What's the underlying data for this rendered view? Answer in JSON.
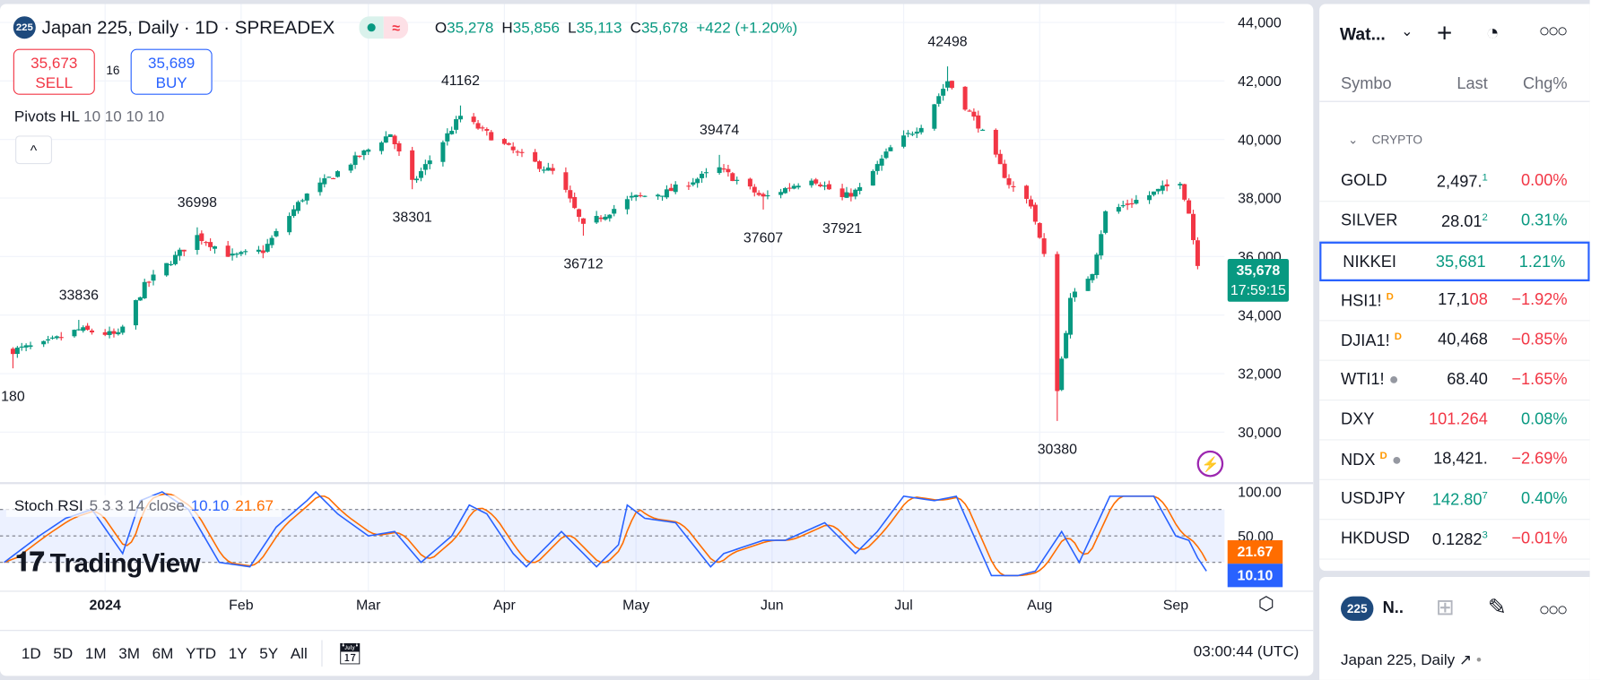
{
  "header": {
    "badge": "225",
    "title": "Japan 225, Daily · 1D · SPREADEX",
    "status_dot_color": "#089981",
    "delay_icon": "≈",
    "ohlc": [
      {
        "k": "O",
        "v": "35,278"
      },
      {
        "k": "H",
        "v": "35,856"
      },
      {
        "k": "L",
        "v": "35,113"
      },
      {
        "k": "C",
        "v": "35,678"
      }
    ],
    "change": "+422 (+1.20%)"
  },
  "trade": {
    "sell_price": "35,673",
    "sell_label": "SELL",
    "spread": "16",
    "buy_price": "35,689",
    "buy_label": "BUY"
  },
  "indicator": {
    "name": "Pivots HL",
    "params": "10 10 10 10",
    "collapse": "^"
  },
  "stoch": {
    "name": "Stoch RSI",
    "params": "5 3 3 14 close",
    "k": "10.10",
    "d": "21.67",
    "k_color": "#2962ff",
    "d_color": "#ff6d00"
  },
  "logo": "TradingView",
  "price_tag": {
    "price": "35,678",
    "countdown": "17:59:15",
    "color": "#089981"
  },
  "bottom": {
    "ranges": [
      "1D",
      "5D",
      "1M",
      "3M",
      "6M",
      "YTD",
      "1Y",
      "5Y",
      "All"
    ],
    "clock": "03:00:44 (UTC)"
  },
  "chart_data": [
    {
      "type": "candlestick",
      "up_color": "#089981",
      "down_color": "#f23645",
      "ylim": [
        29500,
        44500
      ],
      "y_ticks": [
        "44,000",
        "42,000",
        "40,000",
        "38,000",
        "36,000",
        "34,000",
        "32,000",
        "30,000"
      ],
      "y_tick_values": [
        44000,
        42000,
        40000,
        38000,
        36000,
        34000,
        32000,
        30000
      ],
      "x_ticks": [
        {
          "label": "2024",
          "date": "2024-01-01"
        },
        {
          "label": "Feb",
          "date": "2024-02-01"
        },
        {
          "label": "Mar",
          "date": "2024-03-01"
        },
        {
          "label": "Apr",
          "date": "2024-04-01"
        },
        {
          "label": "May",
          "date": "2024-05-01"
        },
        {
          "label": "Jun",
          "date": "2024-06-01"
        },
        {
          "label": "Jul",
          "date": "2024-07-01"
        },
        {
          "label": "Aug",
          "date": "2024-08-01"
        },
        {
          "label": "Sep",
          "date": "2024-09-01"
        }
      ],
      "approx_close": [
        [
          "2023-12-11",
          32800
        ],
        [
          "2023-12-18",
          33000
        ],
        [
          "2023-12-26",
          33500
        ],
        [
          "2024-01-04",
          33300
        ],
        [
          "2024-01-10",
          35000
        ],
        [
          "2024-01-22",
          36700
        ],
        [
          "2024-01-30",
          36000
        ],
        [
          "2024-02-06",
          36200
        ],
        [
          "2024-02-15",
          38000
        ],
        [
          "2024-02-24",
          39000
        ],
        [
          "2024-03-06",
          40200
        ],
        [
          "2024-03-11",
          38500
        ],
        [
          "2024-03-15",
          39300
        ],
        [
          "2024-03-22",
          40800
        ],
        [
          "2024-04-04",
          39500
        ],
        [
          "2024-04-13",
          38800
        ],
        [
          "2024-04-19",
          37000
        ],
        [
          "2024-04-30",
          38000
        ],
        [
          "2024-05-08",
          38200
        ],
        [
          "2024-05-20",
          39000
        ],
        [
          "2024-05-30",
          38000
        ],
        [
          "2024-06-10",
          38700
        ],
        [
          "2024-06-17",
          38000
        ],
        [
          "2024-06-21",
          38300
        ],
        [
          "2024-06-28",
          39700
        ],
        [
          "2024-07-05",
          40500
        ],
        [
          "2024-07-11",
          42000
        ],
        [
          "2024-07-18",
          40500
        ],
        [
          "2024-07-25",
          38500
        ],
        [
          "2024-07-30",
          37800
        ],
        [
          "2024-08-02",
          36000
        ],
        [
          "2024-08-05",
          31500
        ],
        [
          "2024-08-08",
          34500
        ],
        [
          "2024-08-13",
          35500
        ],
        [
          "2024-08-16",
          37500
        ],
        [
          "2024-08-26",
          38100
        ],
        [
          "2024-09-02",
          38600
        ],
        [
          "2024-09-04",
          37500
        ],
        [
          "2024-09-06",
          35678
        ]
      ],
      "pivots": [
        {
          "label": "180",
          "date": "2023-12-11",
          "price": 32180,
          "type": "low"
        },
        {
          "label": "33836",
          "date": "2023-12-26",
          "price": 33836,
          "type": "high"
        },
        {
          "label": "36998",
          "date": "2024-01-22",
          "price": 36998,
          "type": "high"
        },
        {
          "label": "38301",
          "date": "2024-03-11",
          "price": 38301,
          "type": "low"
        },
        {
          "label": "41162",
          "date": "2024-03-22",
          "price": 41162,
          "type": "high"
        },
        {
          "label": "36712",
          "date": "2024-04-19",
          "price": 36712,
          "type": "low"
        },
        {
          "label": "39474",
          "date": "2024-05-20",
          "price": 39474,
          "type": "high"
        },
        {
          "label": "37607",
          "date": "2024-05-30",
          "price": 37607,
          "type": "low"
        },
        {
          "label": "37921",
          "date": "2024-06-17",
          "price": 37921,
          "type": "low"
        },
        {
          "label": "42498",
          "date": "2024-07-11",
          "price": 42498,
          "type": "high"
        },
        {
          "label": "30380",
          "date": "2024-08-05",
          "price": 30380,
          "type": "low"
        }
      ]
    },
    {
      "type": "line",
      "title": "Stoch RSI 5 3 3 14 close",
      "ylim": [
        0,
        100
      ],
      "y_ticks": [
        "100.00",
        "50.00"
      ],
      "bands": [
        20,
        50,
        80
      ],
      "k_approx": [
        [
          "2023-12-09",
          20
        ],
        [
          "2023-12-17",
          50
        ],
        [
          "2023-12-23",
          70
        ],
        [
          "2023-12-29",
          80
        ],
        [
          "2024-01-05",
          30
        ],
        [
          "2024-01-09",
          90
        ],
        [
          "2024-01-14",
          100
        ],
        [
          "2024-01-20",
          80
        ],
        [
          "2024-01-27",
          20
        ],
        [
          "2024-02-03",
          15
        ],
        [
          "2024-02-09",
          60
        ],
        [
          "2024-02-16",
          90
        ],
        [
          "2024-02-18",
          100
        ],
        [
          "2024-02-23",
          75
        ],
        [
          "2024-03-01",
          50
        ],
        [
          "2024-03-07",
          55
        ],
        [
          "2024-03-13",
          20
        ],
        [
          "2024-03-20",
          50
        ],
        [
          "2024-03-24",
          85
        ],
        [
          "2024-03-28",
          75
        ],
        [
          "2024-04-03",
          30
        ],
        [
          "2024-04-06",
          15
        ],
        [
          "2024-04-14",
          55
        ],
        [
          "2024-04-20",
          25
        ],
        [
          "2024-04-22",
          15
        ],
        [
          "2024-04-27",
          40
        ],
        [
          "2024-04-29",
          85
        ],
        [
          "2024-05-03",
          70
        ],
        [
          "2024-05-10",
          65
        ],
        [
          "2024-05-18",
          15
        ],
        [
          "2024-05-21",
          30
        ],
        [
          "2024-05-30",
          45
        ],
        [
          "2024-06-04",
          45
        ],
        [
          "2024-06-13",
          65
        ],
        [
          "2024-06-20",
          30
        ],
        [
          "2024-06-25",
          55
        ],
        [
          "2024-07-01",
          95
        ],
        [
          "2024-07-08",
          90
        ],
        [
          "2024-07-13",
          95
        ],
        [
          "2024-07-21",
          5
        ],
        [
          "2024-07-27",
          5
        ],
        [
          "2024-07-31",
          10
        ],
        [
          "2024-08-06",
          55
        ],
        [
          "2024-08-10",
          20
        ],
        [
          "2024-08-17",
          95
        ],
        [
          "2024-08-23",
          95
        ],
        [
          "2024-08-27",
          95
        ],
        [
          "2024-09-01",
          50
        ],
        [
          "2024-09-04",
          45
        ],
        [
          "2024-09-06",
          25
        ],
        [
          "2024-09-08",
          10.1
        ]
      ],
      "d_last": 21.67
    }
  ],
  "watchlist": {
    "title": "Wat...",
    "columns": [
      "Symbo",
      "Last",
      "Chg%"
    ],
    "section": "CRYPTO",
    "rows": [
      {
        "symbol": "GOLD",
        "last": "2,497.",
        "last_tail": "1",
        "tail_color": "#089981",
        "last_color": "#131722",
        "chg": "0.00%",
        "chg_color": "#f23645",
        "badge": ""
      },
      {
        "symbol": "SILVER",
        "last": "28.01",
        "last_tail": "2",
        "tail_color": "#089981",
        "last_color": "#131722",
        "chg": "0.31%",
        "chg_color": "#089981",
        "badge": ""
      },
      {
        "symbol": "NIKKEI",
        "last": "35,681",
        "last_tail": "",
        "tail_color": "#089981",
        "last_color": "#089981",
        "chg": "1.21%",
        "chg_color": "#089981",
        "badge": "",
        "selected": true
      },
      {
        "symbol": "HSI1!",
        "last": "17,1",
        "last_tail": "08",
        "tail_color": "#f23645",
        "last_color": "#131722",
        "chg": "−1.92%",
        "chg_color": "#f23645",
        "badge": "D"
      },
      {
        "symbol": "DJIA1!",
        "last": "40,468",
        "last_tail": "",
        "tail_color": "#131722",
        "last_color": "#131722",
        "chg": "−0.85%",
        "chg_color": "#f23645",
        "badge": "D"
      },
      {
        "symbol": "WTI1!",
        "last": "68.40",
        "last_tail": "",
        "tail_color": "#131722",
        "last_color": "#131722",
        "chg": "−1.65%",
        "chg_color": "#f23645",
        "badge": "•"
      },
      {
        "symbol": "DXY",
        "last": "101.264",
        "last_tail": "",
        "tail_color": "#f23645",
        "last_color": "#f23645",
        "chg": "0.08%",
        "chg_color": "#089981",
        "badge": ""
      },
      {
        "symbol": "NDX",
        "last": "18,421.",
        "last_tail": "",
        "tail_color": "#131722",
        "last_color": "#131722",
        "chg": "−2.69%",
        "chg_color": "#f23645",
        "badge": "D •"
      },
      {
        "symbol": "USDJPY",
        "last": "142.80",
        "last_tail": "7",
        "tail_color": "#089981",
        "last_color": "#089981",
        "chg": "0.40%",
        "chg_color": "#089981",
        "badge": ""
      },
      {
        "symbol": "HKDUSD",
        "last": "0.1282",
        "last_tail": "3",
        "tail_color": "#089981",
        "last_color": "#131722",
        "chg": "−0.01%",
        "chg_color": "#f23645",
        "badge": ""
      }
    ]
  },
  "detail": {
    "badge": "225",
    "name": "N..",
    "subtitle": "Japan 225, Daily"
  }
}
